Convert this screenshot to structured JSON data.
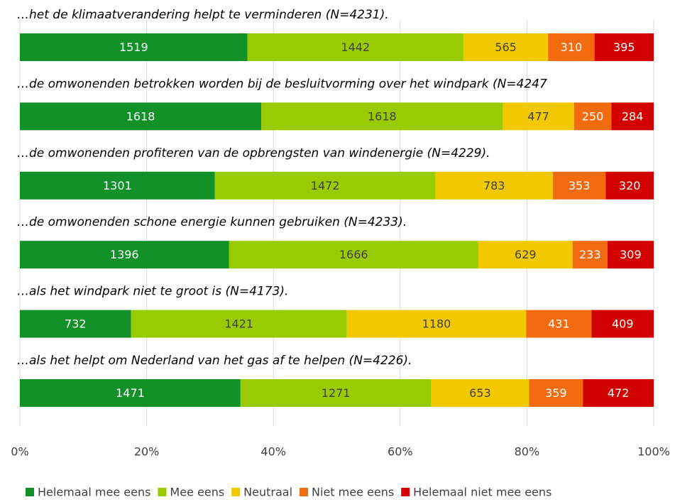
{
  "chart_data": {
    "type": "stacked_bar_horizontal_percent",
    "categories": [
      "…het de klimaatverandering helpt te verminderen (N=4231).",
      "…de omwonenden betrokken worden bij de besluitvorming over het windpark (N=4247",
      "…de omwonenden profiteren van de opbrengsten van windenergie (N=4229).",
      "…de omwonenden schone energie kunnen gebruiken (N=4233).",
      "…als het windpark niet te groot is (N=4173).",
      "…als het helpt om Nederland van het gas af te helpen (N=4226)."
    ],
    "series": [
      {
        "name": "Helemaal mee eens",
        "color": "#119127",
        "values": [
          1519,
          1618,
          1301,
          1396,
          732,
          1471
        ]
      },
      {
        "name": "Mee eens",
        "color": "#99cc00",
        "values": [
          1442,
          1618,
          1472,
          1666,
          1421,
          1271
        ]
      },
      {
        "name": "Neutraal",
        "color": "#f2c900",
        "values": [
          565,
          477,
          783,
          629,
          1180,
          653
        ]
      },
      {
        "name": "Niet mee eens",
        "color": "#f26b0f",
        "values": [
          310,
          250,
          353,
          233,
          431,
          359
        ]
      },
      {
        "name": "Helemaal niet mee eens",
        "color": "#d30000",
        "values": [
          395,
          284,
          320,
          309,
          409,
          472
        ]
      }
    ],
    "xlim": [
      0,
      100
    ],
    "xticks": [
      {
        "value": 0,
        "label": "0%"
      },
      {
        "value": 20,
        "label": "20%"
      },
      {
        "value": 40,
        "label": "40%"
      },
      {
        "value": 60,
        "label": "60%"
      },
      {
        "value": 80,
        "label": "80%"
      },
      {
        "value": 100,
        "label": "100%"
      }
    ],
    "grid": true,
    "legend": "bottom"
  }
}
